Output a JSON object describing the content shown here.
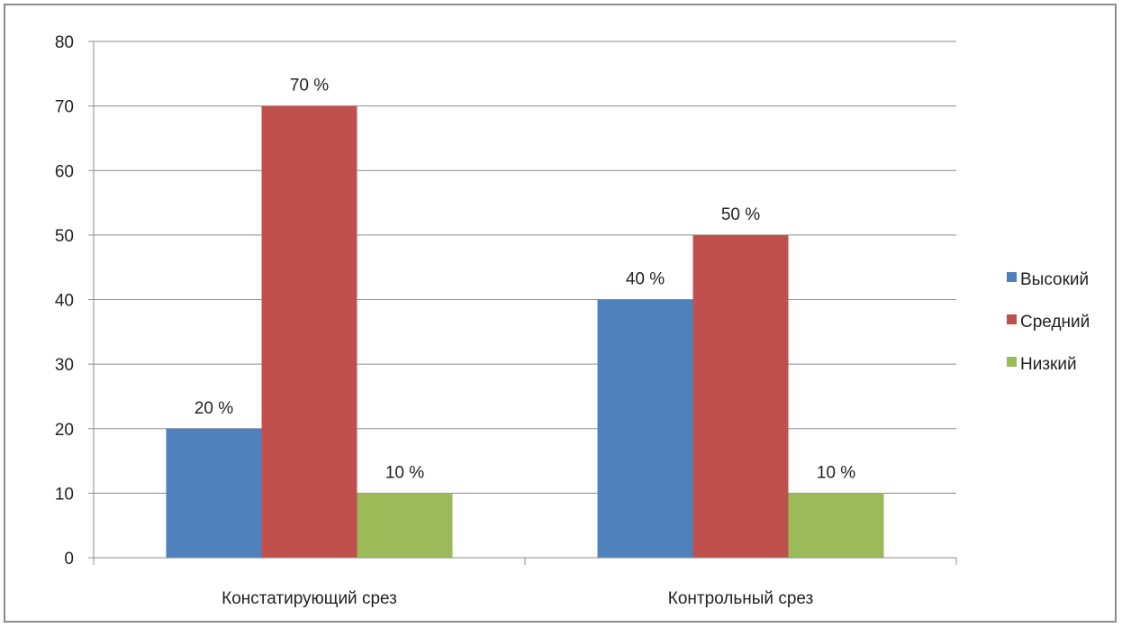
{
  "chart_data": {
    "type": "bar",
    "categories": [
      "Констатирующий срез",
      "Контрольный срез"
    ],
    "series": [
      {
        "name": "Высокий",
        "values": [
          20,
          40
        ],
        "labels": [
          "20 %",
          "40 %"
        ],
        "color": "#4f81bd"
      },
      {
        "name": "Средний",
        "values": [
          70,
          50
        ],
        "labels": [
          "70 %",
          "50 %"
        ],
        "color": "#c0504d"
      },
      {
        "name": "Низкий",
        "values": [
          10,
          10
        ],
        "labels": [
          "10 %",
          "10 %"
        ],
        "color": "#9bbb59"
      }
    ],
    "yticks": [
      "0",
      "10",
      "20",
      "30",
      "40",
      "50",
      "60",
      "70",
      "80"
    ],
    "ylim": [
      0,
      80
    ],
    "grid": true,
    "legend": "right"
  }
}
